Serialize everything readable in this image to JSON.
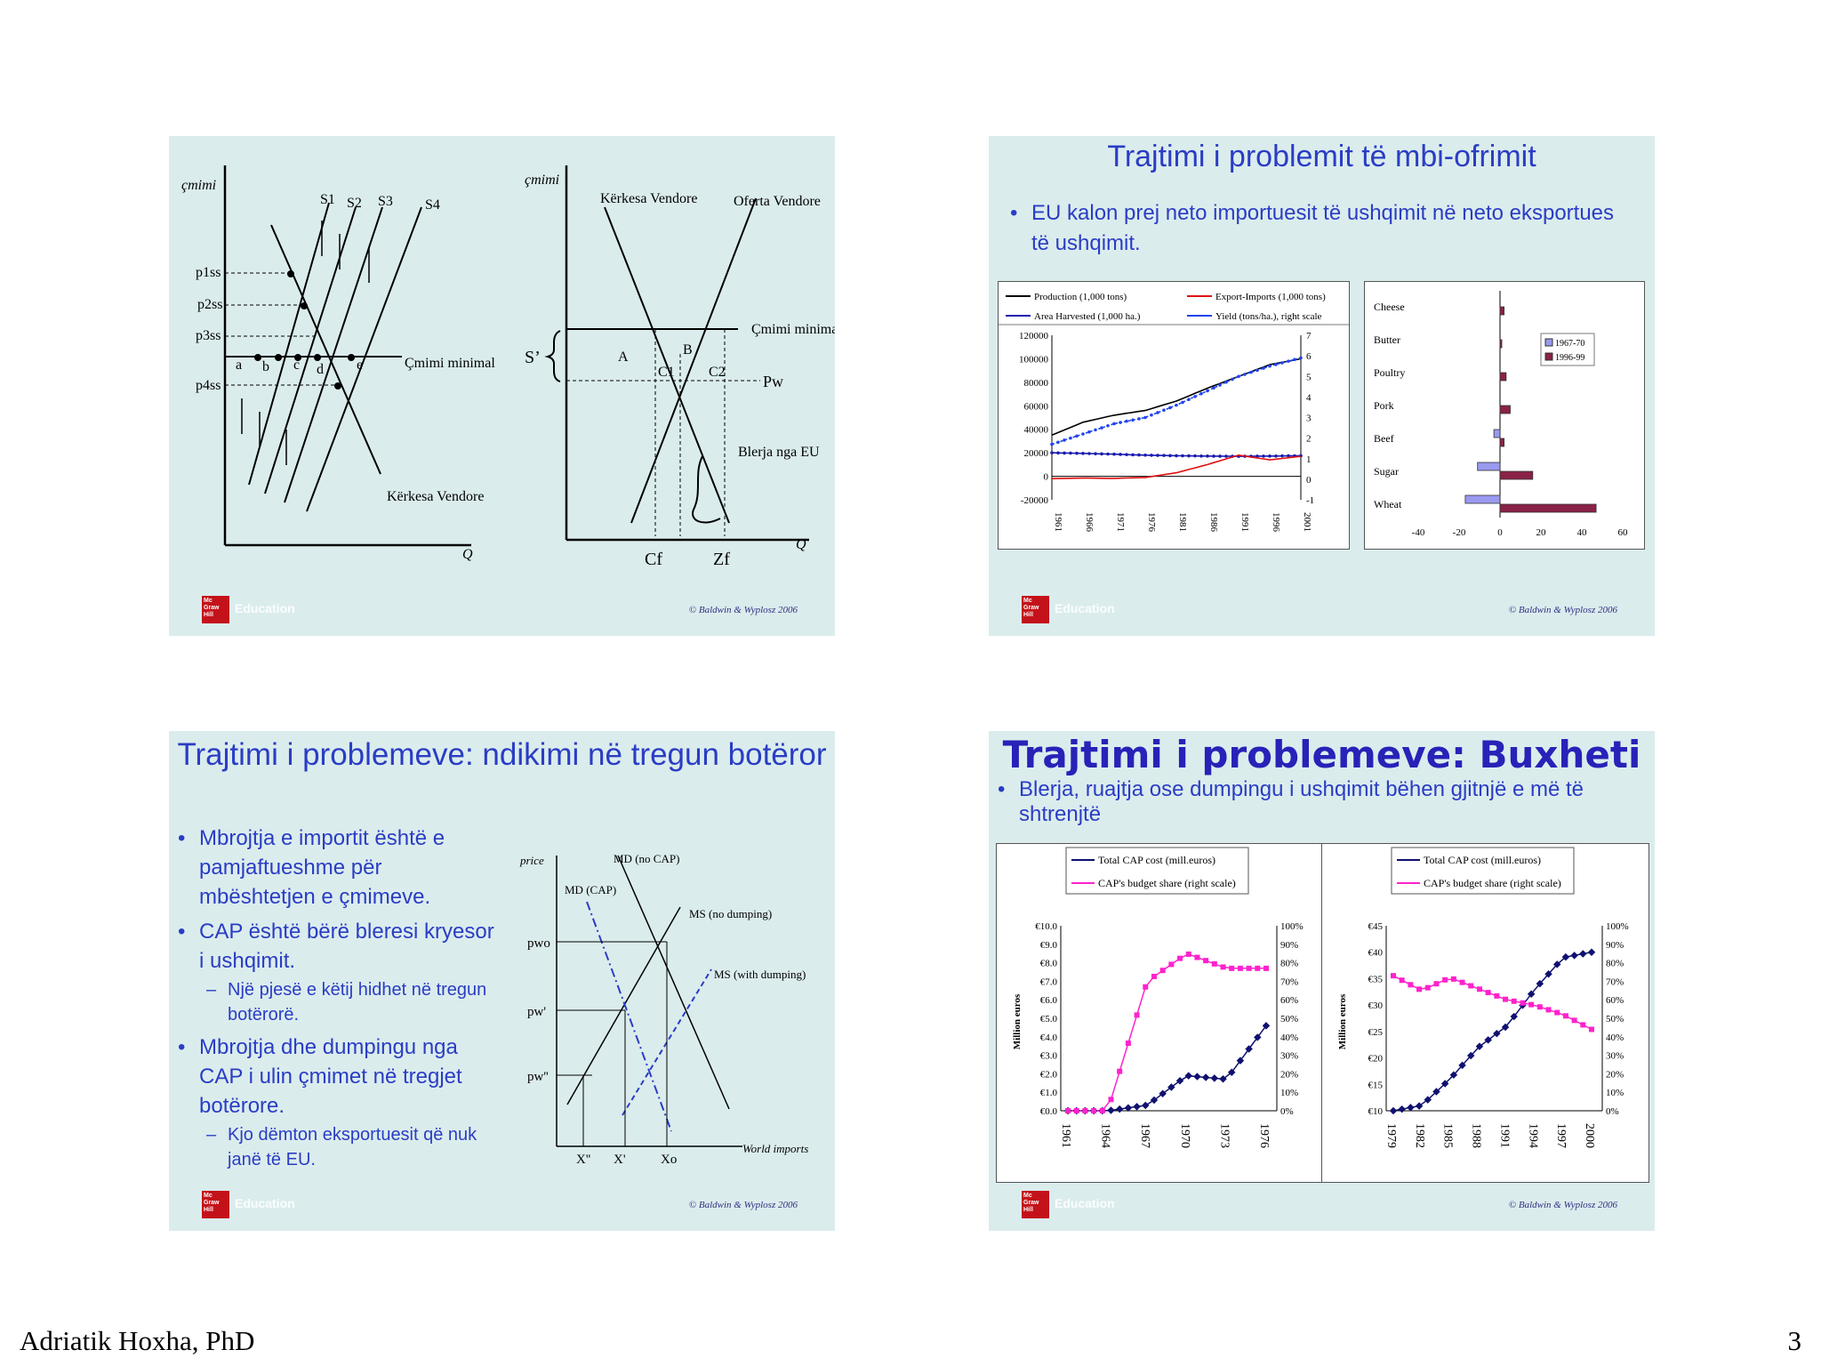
{
  "page": {
    "author": "Adriatik Hoxha, PhD",
    "number": "3"
  },
  "footer": {
    "copyright": "© Baldwin & Wyplosz 2006",
    "logo_text": "Mc Graw Hill",
    "education": "Education"
  },
  "slide1": {
    "left": {
      "ylabel": "çmimi",
      "xlabel": "Q",
      "supply": [
        "S1",
        "S2",
        "S3",
        "S4"
      ],
      "prices": [
        "p1ss",
        "p2ss",
        "p3ss",
        "p4ss"
      ],
      "points": [
        "a",
        "b",
        "c",
        "d",
        "e"
      ],
      "floor": "Çmimi minimal",
      "demand": "Kërkesa Vendore"
    },
    "right": {
      "ylabel": "çmimi",
      "xlabel": "Q",
      "demand": "Kërkesa Vendore",
      "supply": "Oferta Vendore",
      "floor": "Çmimi minimal",
      "sprime": "S’",
      "areas": [
        "A",
        "B",
        "C1",
        "C2"
      ],
      "world": "Pw",
      "purchase": "Blerja nga EU",
      "cf": "Cf",
      "zf": "Zf"
    }
  },
  "slide2": {
    "title": "Trajtimi i problemit të mbi-ofrimit",
    "bullet": "EU kalon prej neto importuesit të ushqimit në neto eksportues të ushqimit.",
    "legend1": [
      "Production (1,000 tons)",
      "Export-Imports (1,000 tons)",
      "Area Harvested (1,000 ha.)",
      "Yield (tons/ha.), right scale"
    ],
    "legend2": [
      "1967-70",
      "1996-99"
    ]
  },
  "slide3": {
    "title": "Trajtimi i problemeve: ndikimi në tregun botëror",
    "bullets": [
      {
        "level": 1,
        "text": "Mbrojtja e importit është e pamjaftueshme për mbështetjen e çmimeve."
      },
      {
        "level": 1,
        "text": "CAP është bërë bleresi kryesor i ushqimit."
      },
      {
        "level": 2,
        "text": "Një pjesë e këtij hidhet në tregun botërorë."
      },
      {
        "level": 1,
        "text": "Mbrojtja dhe dumpingu nga CAP i ulin çmimet në tregjet botërore."
      },
      {
        "level": 2,
        "text": "Kjo dëmton eksportuesit që nuk janë të EU."
      }
    ],
    "diagram": {
      "ylabel": "price",
      "md_nocap": "MD (no CAP)",
      "md_cap": "MD (CAP)",
      "ms_no": "MS (no dumping)",
      "ms_with": "MS (with dumping)",
      "prices": [
        "pwo",
        "pw'",
        "pw''"
      ],
      "xticks": [
        "X''",
        "X'",
        "Xo"
      ],
      "xlabel": "World imports"
    }
  },
  "slide4": {
    "title": "Trajtimi i problemeve: Buxheti",
    "bullet": "Blerja, ruajtja ose dumpingu i ushqimit bëhen gjitnjë e më të shtrenjtë",
    "legend": [
      "Total CAP cost (mill.euros)",
      "CAP's budget share (right scale)"
    ],
    "ylabel": "Million euros"
  },
  "chart_data": [
    {
      "type": "line",
      "title": "",
      "x": [
        "1961",
        "1966",
        "1971",
        "1976",
        "1981",
        "1986",
        "1991",
        "1996",
        "2001"
      ],
      "series": [
        {
          "name": "Production (1,000 tons)",
          "values": [
            35000,
            46000,
            52000,
            56000,
            64000,
            75000,
            85000,
            95000,
            100000
          ]
        },
        {
          "name": "Area Harvested (1,000 ha.)",
          "values": [
            20000,
            19500,
            18800,
            18000,
            17500,
            17200,
            17000,
            17200,
            17500
          ]
        },
        {
          "name": "Export-Imports (1,000 tons)",
          "values": [
            -2000,
            -1500,
            -1800,
            -1000,
            3000,
            10000,
            18000,
            14000,
            17000
          ]
        },
        {
          "name": "Yield (tons/ha.), right scale",
          "values": [
            1.7,
            2.2,
            2.7,
            3.0,
            3.6,
            4.3,
            5.0,
            5.5,
            5.9
          ]
        }
      ],
      "ylim": [
        -20000,
        120000
      ],
      "y2lim": [
        -1,
        7
      ]
    },
    {
      "type": "bar",
      "title": "",
      "categories": [
        "Cheese",
        "Butter",
        "Poultry",
        "Pork",
        "Beef",
        "Sugar",
        "Wheat"
      ],
      "series": [
        {
          "name": "1967-70",
          "values": [
            0,
            0,
            0,
            0,
            -3,
            -11,
            -17
          ]
        },
        {
          "name": "1996-99",
          "values": [
            2,
            0.5,
            3,
            5,
            2,
            16,
            47
          ]
        }
      ],
      "xlim": [
        -40,
        60
      ]
    },
    {
      "type": "line",
      "title": "",
      "x": [
        "1961",
        "1964",
        "1967",
        "1970",
        "1973",
        "1976"
      ],
      "series": [
        {
          "name": "Total CAP cost (mill.euros)",
          "values": [
            0,
            0,
            0.3,
            1.9,
            1.7,
            4.6
          ]
        },
        {
          "name": "CAP's budget share (right scale)",
          "values": [
            0,
            0,
            70,
            85,
            77,
            77
          ]
        }
      ],
      "ylim": [
        0,
        10
      ],
      "y2lim": [
        0,
        100
      ],
      "ylabel": "Million euros"
    },
    {
      "type": "line",
      "title": "",
      "x": [
        "1979",
        "1982",
        "1985",
        "1988",
        "1991",
        "1994",
        "1997",
        "2000"
      ],
      "series": [
        {
          "name": "Total CAP cost (mill.euros)",
          "values": [
            10,
            11,
            16,
            22,
            26,
            33,
            39,
            40
          ]
        },
        {
          "name": "CAP's budget share (right scale)",
          "values": [
            73,
            65,
            72,
            66,
            60,
            57,
            52,
            44
          ]
        }
      ],
      "ylim": [
        10,
        45
      ],
      "y2lim": [
        0,
        100
      ],
      "ylabel": "Million euros"
    }
  ]
}
